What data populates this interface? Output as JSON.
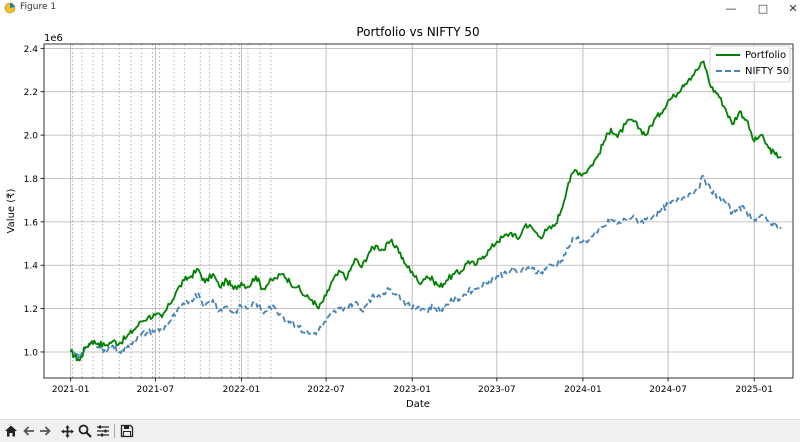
{
  "window": {
    "title": "Figure 1"
  },
  "toolbar": {
    "icons": [
      "home-icon",
      "back-icon",
      "forward-icon",
      "pan-icon",
      "zoom-icon",
      "configure-icon",
      "save-icon"
    ]
  },
  "colors": {
    "portfolio": "#008000",
    "nifty": "#4682b4",
    "grid": "#b0b0b0",
    "event_lines": "#aaaaaa"
  },
  "chart_data": {
    "type": "line",
    "title": "Portfolio vs NIFTY 50",
    "xlabel": "Date",
    "ylabel": "Value (₹)",
    "y_offset_label": "1e6",
    "ylim": [
      0.88,
      2.42
    ],
    "xlim": [
      "2020-11-05",
      "2025-03-25"
    ],
    "x_ticks": [
      "2021-01",
      "2021-07",
      "2022-01",
      "2022-07",
      "2023-01",
      "2023-07",
      "2024-01",
      "2024-07",
      "2025-01"
    ],
    "y_ticks": [
      "1.0",
      "1.2",
      "1.4",
      "1.6",
      "1.8",
      "2.0",
      "2.2",
      "2.4"
    ],
    "grid": true,
    "legend": "upper right",
    "event_lines": [
      "2021-01-05",
      "2021-01-25",
      "2021-02-18",
      "2021-03-10",
      "2021-04-15",
      "2021-05-10",
      "2021-06-01",
      "2021-06-25",
      "2021-07-10",
      "2021-08-10",
      "2021-09-01",
      "2021-10-05",
      "2021-10-25",
      "2021-11-20",
      "2021-12-10",
      "2021-12-28",
      "2022-01-15",
      "2022-02-10",
      "2022-03-05"
    ],
    "x": [
      "2021-01-01",
      "2021-01-10",
      "2021-01-20",
      "2021-02-01",
      "2021-02-15",
      "2021-03-01",
      "2021-03-15",
      "2021-04-01",
      "2021-04-15",
      "2021-05-01",
      "2021-05-15",
      "2021-06-01",
      "2021-06-15",
      "2021-07-01",
      "2021-07-15",
      "2021-08-01",
      "2021-08-15",
      "2021-09-01",
      "2021-09-15",
      "2021-10-01",
      "2021-10-15",
      "2021-11-01",
      "2021-11-15",
      "2021-12-01",
      "2021-12-15",
      "2022-01-01",
      "2022-01-15",
      "2022-02-01",
      "2022-02-15",
      "2022-03-01",
      "2022-03-15",
      "2022-04-01",
      "2022-04-15",
      "2022-05-01",
      "2022-05-15",
      "2022-06-01",
      "2022-06-15",
      "2022-07-01",
      "2022-07-15",
      "2022-08-01",
      "2022-08-15",
      "2022-09-01",
      "2022-09-15",
      "2022-10-01",
      "2022-10-15",
      "2022-11-01",
      "2022-11-15",
      "2022-12-01",
      "2022-12-15",
      "2023-01-01",
      "2023-01-15",
      "2023-02-01",
      "2023-02-15",
      "2023-03-01",
      "2023-03-15",
      "2023-04-01",
      "2023-04-15",
      "2023-05-01",
      "2023-05-15",
      "2023-06-01",
      "2023-06-15",
      "2023-07-01",
      "2023-07-15",
      "2023-08-01",
      "2023-08-15",
      "2023-09-01",
      "2023-09-15",
      "2023-10-01",
      "2023-10-15",
      "2023-11-01",
      "2023-11-15",
      "2023-12-01",
      "2023-12-15",
      "2024-01-01",
      "2024-01-15",
      "2024-02-01",
      "2024-02-15",
      "2024-03-01",
      "2024-03-15",
      "2024-04-01",
      "2024-04-15",
      "2024-05-01",
      "2024-05-15",
      "2024-06-01",
      "2024-06-15",
      "2024-07-01",
      "2024-07-15",
      "2024-08-01",
      "2024-08-15",
      "2024-09-01",
      "2024-09-15",
      "2024-10-01",
      "2024-10-15",
      "2024-11-01",
      "2024-11-15",
      "2024-12-01",
      "2024-12-15",
      "2025-01-01",
      "2025-01-15",
      "2025-02-01",
      "2025-02-15",
      "2025-02-28"
    ],
    "series": [
      {
        "name": "Portfolio",
        "style": "solid",
        "values": [
          1.0,
          0.98,
          0.96,
          1.02,
          1.05,
          1.04,
          1.03,
          1.05,
          1.04,
          1.07,
          1.1,
          1.14,
          1.16,
          1.17,
          1.16,
          1.22,
          1.28,
          1.33,
          1.35,
          1.38,
          1.32,
          1.36,
          1.3,
          1.33,
          1.29,
          1.32,
          1.3,
          1.35,
          1.29,
          1.32,
          1.34,
          1.36,
          1.32,
          1.3,
          1.26,
          1.24,
          1.2,
          1.26,
          1.33,
          1.37,
          1.34,
          1.43,
          1.39,
          1.46,
          1.49,
          1.47,
          1.51,
          1.48,
          1.41,
          1.37,
          1.32,
          1.35,
          1.33,
          1.3,
          1.33,
          1.36,
          1.37,
          1.42,
          1.4,
          1.44,
          1.47,
          1.51,
          1.53,
          1.55,
          1.52,
          1.59,
          1.57,
          1.53,
          1.56,
          1.58,
          1.65,
          1.78,
          1.84,
          1.82,
          1.85,
          1.9,
          1.97,
          2.03,
          1.99,
          2.05,
          2.07,
          2.03,
          2.0,
          2.07,
          2.1,
          2.16,
          2.18,
          2.23,
          2.26,
          2.3,
          2.34,
          2.22,
          2.19,
          2.12,
          2.05,
          2.11,
          2.07,
          1.97,
          2.0,
          1.94,
          1.91,
          1.9
        ]
      },
      {
        "name": "NIFTY 50",
        "style": "dashed",
        "values": [
          1.0,
          0.99,
          0.97,
          1.02,
          1.04,
          1.02,
          1.01,
          1.03,
          1.0,
          1.02,
          1.05,
          1.08,
          1.09,
          1.1,
          1.1,
          1.14,
          1.18,
          1.22,
          1.24,
          1.27,
          1.21,
          1.24,
          1.19,
          1.21,
          1.18,
          1.21,
          1.2,
          1.23,
          1.18,
          1.21,
          1.2,
          1.16,
          1.14,
          1.12,
          1.09,
          1.08,
          1.1,
          1.14,
          1.18,
          1.2,
          1.21,
          1.23,
          1.19,
          1.24,
          1.26,
          1.27,
          1.29,
          1.27,
          1.23,
          1.2,
          1.21,
          1.19,
          1.21,
          1.19,
          1.22,
          1.24,
          1.25,
          1.28,
          1.29,
          1.31,
          1.33,
          1.35,
          1.36,
          1.38,
          1.37,
          1.38,
          1.39,
          1.36,
          1.39,
          1.4,
          1.42,
          1.48,
          1.53,
          1.51,
          1.52,
          1.55,
          1.58,
          1.61,
          1.59,
          1.61,
          1.62,
          1.6,
          1.61,
          1.63,
          1.65,
          1.68,
          1.69,
          1.71,
          1.73,
          1.75,
          1.81,
          1.74,
          1.72,
          1.69,
          1.64,
          1.67,
          1.65,
          1.61,
          1.63,
          1.6,
          1.59,
          1.57
        ]
      }
    ]
  }
}
